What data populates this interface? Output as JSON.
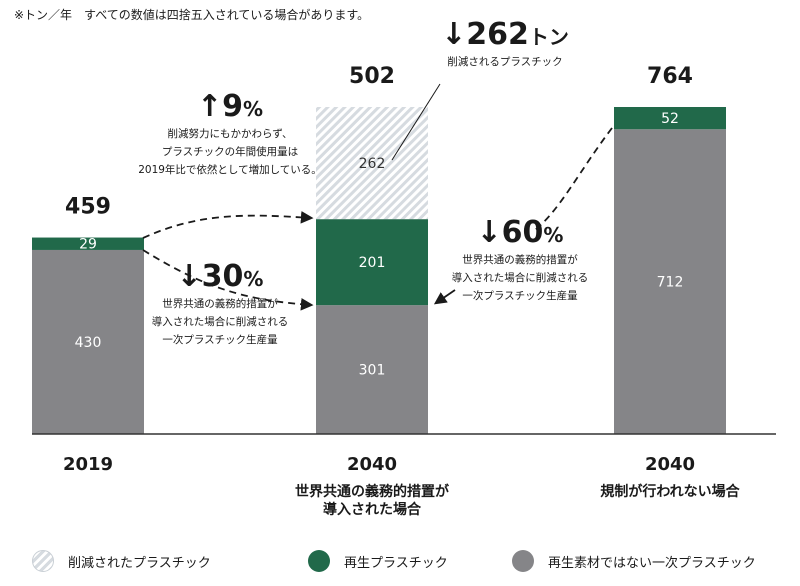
{
  "note": "※トン／年　すべての数値は四捨五入されている場合があります。",
  "colors": {
    "primary": "#858588",
    "recycled": "#21694a",
    "reduced_stripe": "#d6dbe0",
    "baseline": "#333333"
  },
  "chart_data": {
    "type": "bar",
    "stacked": true,
    "ylim": [
      0,
      764
    ],
    "groups": [
      {
        "year": "2019",
        "caption": "",
        "total": "459",
        "segments": [
          {
            "series": "primary",
            "value": 430
          },
          {
            "series": "recycled",
            "value": 29
          }
        ]
      },
      {
        "year": "2040",
        "caption": "世界共通の義務的措置が\n導入された場合",
        "total": "502",
        "segments": [
          {
            "series": "primary",
            "value": 301
          },
          {
            "series": "recycled",
            "value": 201
          },
          {
            "series": "reduced",
            "value": 262
          }
        ]
      },
      {
        "year": "2040",
        "caption": "規制が行われない場合",
        "total": "764",
        "segments": [
          {
            "series": "primary",
            "value": 712
          },
          {
            "series": "recycled",
            "value": 52
          }
        ]
      }
    ],
    "legend": [
      {
        "series": "reduced",
        "label": "削減されたプラスチック"
      },
      {
        "series": "recycled",
        "label": "再生プラスチック"
      },
      {
        "series": "primary",
        "label": "再生素材ではない一次プラスチック"
      }
    ]
  },
  "annotations": {
    "up9": {
      "arrow": "↑",
      "value": "9",
      "unit": "%",
      "text": "削減努力にもかかわらず、\nプラスチックの年間使用量は\n2019年比で依然として増加している。"
    },
    "down30": {
      "arrow": "↓",
      "value": "30",
      "unit": "%",
      "text": "世界共通の義務的措置が\n導入された場合に削減される\n一次プラスチック生産量"
    },
    "down262": {
      "arrow": "↓",
      "value": "262",
      "unit": "トン",
      "text": "削減されるプラスチック"
    },
    "down60": {
      "arrow": "↓",
      "value": "60",
      "unit": "%",
      "text": "世界共通の義務的措置が\n導入された場合に削減される\n一次プラスチック生産量"
    }
  }
}
